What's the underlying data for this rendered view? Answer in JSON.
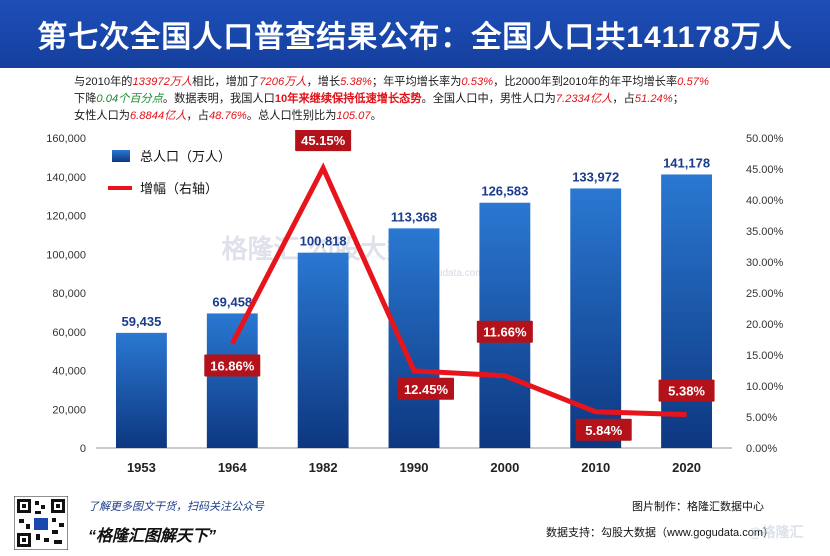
{
  "header": {
    "title": "第七次全国人口普查结果公布：全国人口共141178万人"
  },
  "summary": {
    "s1": "与2010年的",
    "s2": "133972万人",
    "s3": "相比，增加了",
    "s4": "7206万人",
    "s5": "，增长",
    "s6": "5.38%",
    "s7": "；年平均增长率为",
    "s8": "0.53%",
    "s9": "，比2000年到2010年的年平均增长率",
    "s10": "0.57%",
    "s11": "下降",
    "s12": "0.04个百分点",
    "s13": "。数据表明，我国人口",
    "s14": "10年来继续保持低速增长态势",
    "s15": "。全国人口中，男性人口为",
    "s16": "7.2334亿人",
    "s17": "，占",
    "s18": "51.24%",
    "s19": "；",
    "s20": "女性人口为",
    "s21": "6.8844亿人",
    "s22": "，占",
    "s23": "48.76%",
    "s24": "。总人口性别比为",
    "s25": "105.07",
    "s26": "。"
  },
  "chart_data": {
    "type": "bar",
    "categories": [
      "1953",
      "1964",
      "1982",
      "1990",
      "2000",
      "2010",
      "2020"
    ],
    "series": [
      {
        "name": "总人口（万人）",
        "type": "bar",
        "axis": "left",
        "values": [
          59435,
          69458,
          100818,
          113368,
          126583,
          133972,
          141178
        ],
        "labels": [
          "59,435",
          "69,458",
          "100,818",
          "113,368",
          "126,583",
          "133,972",
          "141,178"
        ],
        "color": "#1557b0"
      },
      {
        "name": "增幅（右轴）",
        "type": "line",
        "axis": "right",
        "values": [
          null,
          16.86,
          45.15,
          12.45,
          11.66,
          5.84,
          5.38
        ],
        "labels": [
          "",
          "16.86%",
          "45.15%",
          "12.45%",
          "11.66%",
          "5.84%",
          "5.38%"
        ],
        "color": "#e8141c"
      }
    ],
    "y_left": {
      "min": 0,
      "max": 160000,
      "ticks": [
        0,
        20000,
        40000,
        60000,
        80000,
        100000,
        120000,
        140000,
        160000
      ],
      "tick_labels": [
        "0",
        "20,000",
        "40,000",
        "60,000",
        "80,000",
        "100,000",
        "120,000",
        "140,000",
        "160,000"
      ]
    },
    "y_right": {
      "min": 0,
      "max": 50,
      "ticks": [
        0,
        5,
        10,
        15,
        20,
        25,
        30,
        35,
        40,
        45,
        50
      ],
      "tick_labels": [
        "0.00%",
        "5.00%",
        "10.00%",
        "15.00%",
        "20.00%",
        "25.00%",
        "30.00%",
        "35.00%",
        "40.00%",
        "45.00%",
        "50.00%"
      ]
    },
    "legend_position": "top-left",
    "grid": false
  },
  "footer": {
    "promo": "了解更多图文干货，扫码关注公众号",
    "slogan": "“格隆汇图解天下”",
    "made_by": "图片制作：格隆汇数据中心",
    "data_support": "数据支持：勾股大数据（www.gogudata.com）"
  },
  "watermarks": {
    "center": "格隆汇  勾股大数据",
    "center_url": "www.gogudata.com",
    "corner": "@格隆汇"
  },
  "colors": {
    "title_bg": "#1a47ad",
    "bar_top": "#2a78d2",
    "bar_bottom": "#0d3780",
    "line": "#e8141c",
    "label_box": "#b3121a",
    "bar_label": "#1a3c8c"
  }
}
